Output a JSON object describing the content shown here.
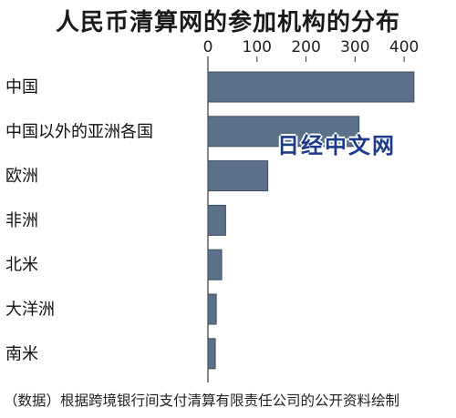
{
  "chart_data": {
    "type": "bar",
    "orientation": "horizontal",
    "title": "人民币清算网的参加机构的分布",
    "categories": [
      "中国",
      "中国以外的亚洲各国",
      "欧洲",
      "非洲",
      "北米",
      "大洋洲",
      "南米"
    ],
    "values": [
      420,
      308,
      122,
      36,
      28,
      17,
      15
    ],
    "xlim": [
      0,
      450
    ],
    "xticks": [
      0,
      100,
      200,
      300,
      400
    ],
    "xlabel": "",
    "ylabel": "",
    "colors": {
      "bar": "#5b7089",
      "bar_edge": "#3f4e60"
    }
  },
  "watermark": "日经中文网",
  "source": "（数据）根据跨境银行间支付清算有限责任公司的公开资料绘制"
}
